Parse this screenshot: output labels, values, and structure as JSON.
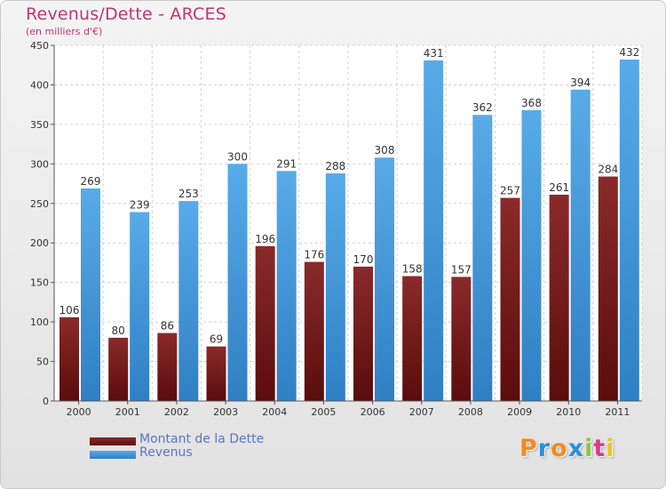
{
  "chart_data": {
    "type": "bar",
    "title": "Revenus/Dette - ARCES",
    "subtitle": "(en milliers d'€)",
    "categories": [
      "2000",
      "2001",
      "2002",
      "2003",
      "2004",
      "2005",
      "2006",
      "2007",
      "2008",
      "2009",
      "2010",
      "2011"
    ],
    "series": [
      {
        "name": "Montant de la Dette",
        "color": "#7a1a1a",
        "values": [
          106,
          80,
          86,
          69,
          196,
          176,
          170,
          158,
          157,
          257,
          261,
          284
        ]
      },
      {
        "name": "Revenus",
        "color": "#4da3e3",
        "values": [
          269,
          239,
          253,
          300,
          291,
          288,
          308,
          431,
          362,
          368,
          394,
          432
        ]
      }
    ],
    "ylim": [
      0,
      450
    ],
    "yticks": [
      0,
      50,
      100,
      150,
      200,
      250,
      300,
      350,
      400,
      450
    ],
    "grid": true,
    "legend": "bottom-left"
  },
  "logo": {
    "text": "Proxiti",
    "letters": [
      "P",
      "r",
      "o",
      "x",
      "i",
      "t",
      "i"
    ],
    "colors": [
      "#f28c1e",
      "#2a8fd8",
      "#f28c1e",
      "#2a8fd8",
      "#8cc63f",
      "#d93a8c",
      "#f2c21e"
    ]
  }
}
